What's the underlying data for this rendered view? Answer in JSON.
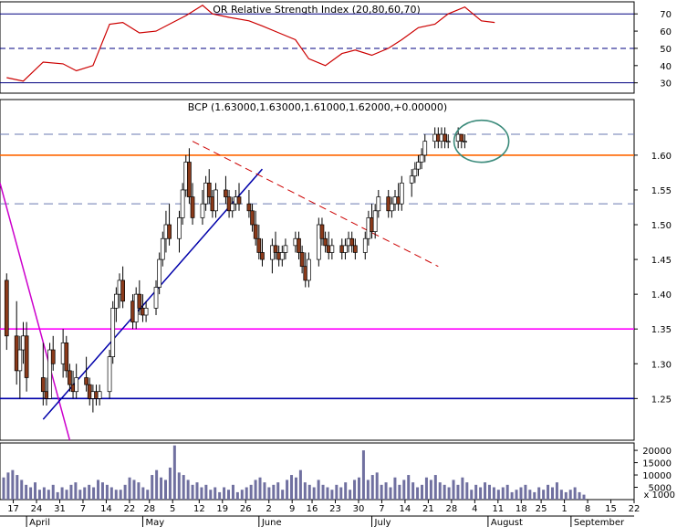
{
  "chart_data": [
    {
      "panel": "rsi",
      "type": "line",
      "title": "OR Relative Strength Index (20,80,60,70)",
      "y_ticks": [
        30,
        40,
        50,
        60,
        70
      ],
      "ylim": [
        24,
        77
      ],
      "reference_lines": [
        {
          "value": 70,
          "style": "solid",
          "color": "#000080"
        },
        {
          "value": 50,
          "style": "dashed",
          "color": "#000080"
        },
        {
          "value": 30,
          "style": "solid",
          "color": "#000080"
        }
      ],
      "series": [
        {
          "color": "#cc0000",
          "x": [
            "2011-04-15",
            "2011-04-20",
            "2011-04-26",
            "2011-05-02",
            "2011-05-06",
            "2011-05-11",
            "2011-05-16",
            "2011-05-20",
            "2011-05-25",
            "2011-05-30",
            "2011-06-03",
            "2011-06-08",
            "2011-06-13",
            "2011-06-16",
            "2011-06-21",
            "2011-06-27",
            "2011-07-01",
            "2011-07-06",
            "2011-07-11",
            "2011-07-15",
            "2011-07-20",
            "2011-07-25",
            "2011-07-29",
            "2011-08-03",
            "2011-08-08",
            "2011-08-12",
            "2011-08-17",
            "2011-08-22",
            "2011-08-26",
            "2011-08-31",
            "2011-09-05",
            "2011-09-09"
          ],
          "values": [
            33,
            31,
            42,
            41,
            37,
            40,
            64,
            65,
            59,
            60,
            64,
            69,
            75,
            70,
            68,
            66,
            63,
            59,
            55,
            44,
            40,
            47,
            49,
            46,
            50,
            55,
            62,
            64,
            70,
            74,
            66,
            65
          ]
        }
      ]
    },
    {
      "panel": "price",
      "type": "candlestick",
      "title": "BCP (1.63000,1.63000,1.61000,1.62000,+0.00000)",
      "y_ticks": [
        1.25,
        1.3,
        1.35,
        1.4,
        1.45,
        1.5,
        1.55,
        1.6
      ],
      "ylim": [
        1.19,
        1.68
      ],
      "colors": {
        "up": "#ffffff",
        "down": "#8b3a1a",
        "outline": "#000000"
      },
      "horizontal_lines": [
        {
          "value": 1.6,
          "color": "#ff6600",
          "style": "solid"
        },
        {
          "value": 1.35,
          "color": "#ff00ff",
          "style": "solid"
        },
        {
          "value": 1.25,
          "color": "#0000aa",
          "style": "solid"
        },
        {
          "value": 1.63,
          "color": "#6a7ab0",
          "style": "dashed"
        },
        {
          "value": 1.53,
          "color": "#6a7ab0",
          "style": "dashed"
        }
      ],
      "trendlines": [
        {
          "x1": "2011-04-13",
          "y1": 1.56,
          "x2": "2011-05-04",
          "y2": 1.19,
          "color": "#cc00cc"
        },
        {
          "x1": "2011-04-26",
          "y1": 1.22,
          "x2": "2011-07-01",
          "y2": 1.58,
          "color": "#0000aa"
        },
        {
          "x1": "2011-06-10",
          "y1": 1.62,
          "x2": "2011-08-23",
          "y2": 1.44,
          "color": "#cc0000",
          "style": "dashed"
        }
      ],
      "highlight": {
        "x": "2011-09-05",
        "y": 1.62,
        "color": "#3a8a7a"
      },
      "candles": [
        [
          "2011-04-15",
          1.42,
          1.43,
          1.32,
          1.34
        ],
        [
          "2011-04-18",
          1.34,
          1.39,
          1.27,
          1.29
        ],
        [
          "2011-04-19",
          1.29,
          1.34,
          1.25,
          1.32
        ],
        [
          "2011-04-20",
          1.32,
          1.36,
          1.3,
          1.34
        ],
        [
          "2011-04-21",
          1.34,
          1.36,
          1.26,
          1.28
        ],
        [
          "2011-04-26",
          1.28,
          1.33,
          1.24,
          1.26
        ],
        [
          "2011-04-27",
          1.26,
          1.28,
          1.24,
          1.25
        ],
        [
          "2011-04-28",
          1.25,
          1.33,
          1.25,
          1.32
        ],
        [
          "2011-04-29",
          1.32,
          1.34,
          1.29,
          1.3
        ],
        [
          "2011-05-02",
          1.3,
          1.35,
          1.28,
          1.33
        ],
        [
          "2011-05-03",
          1.33,
          1.34,
          1.28,
          1.29
        ],
        [
          "2011-05-04",
          1.29,
          1.3,
          1.26,
          1.27
        ],
        [
          "2011-05-05",
          1.27,
          1.29,
          1.25,
          1.26
        ],
        [
          "2011-05-06",
          1.26,
          1.3,
          1.25,
          1.28
        ],
        [
          "2011-05-09",
          1.28,
          1.31,
          1.26,
          1.27
        ],
        [
          "2011-05-10",
          1.27,
          1.28,
          1.24,
          1.25
        ],
        [
          "2011-05-11",
          1.25,
          1.27,
          1.23,
          1.26
        ],
        [
          "2011-05-12",
          1.26,
          1.27,
          1.24,
          1.25
        ],
        [
          "2011-05-13",
          1.25,
          1.27,
          1.24,
          1.26
        ],
        [
          "2011-05-16",
          1.26,
          1.32,
          1.25,
          1.31
        ],
        [
          "2011-05-17",
          1.31,
          1.39,
          1.3,
          1.38
        ],
        [
          "2011-05-18",
          1.38,
          1.41,
          1.36,
          1.4
        ],
        [
          "2011-05-19",
          1.4,
          1.43,
          1.38,
          1.42
        ],
        [
          "2011-05-20",
          1.42,
          1.44,
          1.38,
          1.39
        ],
        [
          "2011-05-23",
          1.39,
          1.4,
          1.35,
          1.36
        ],
        [
          "2011-05-24",
          1.36,
          1.41,
          1.35,
          1.4
        ],
        [
          "2011-05-25",
          1.4,
          1.42,
          1.37,
          1.38
        ],
        [
          "2011-05-26",
          1.38,
          1.4,
          1.36,
          1.37
        ],
        [
          "2011-05-27",
          1.37,
          1.39,
          1.36,
          1.38
        ],
        [
          "2011-05-30",
          1.38,
          1.42,
          1.37,
          1.41
        ],
        [
          "2011-05-31",
          1.41,
          1.46,
          1.4,
          1.45
        ],
        [
          "2011-06-01",
          1.45,
          1.49,
          1.44,
          1.48
        ],
        [
          "2011-06-02",
          1.48,
          1.52,
          1.46,
          1.5
        ],
        [
          "2011-06-03",
          1.5,
          1.53,
          1.47,
          1.48
        ],
        [
          "2011-06-06",
          1.48,
          1.52,
          1.46,
          1.51
        ],
        [
          "2011-06-07",
          1.51,
          1.56,
          1.5,
          1.55
        ],
        [
          "2011-06-08",
          1.55,
          1.6,
          1.54,
          1.59
        ],
        [
          "2011-06-09",
          1.59,
          1.61,
          1.53,
          1.54
        ],
        [
          "2011-06-10",
          1.54,
          1.56,
          1.5,
          1.51
        ],
        [
          "2011-06-13",
          1.51,
          1.55,
          1.5,
          1.53
        ],
        [
          "2011-06-14",
          1.53,
          1.57,
          1.52,
          1.56
        ],
        [
          "2011-06-15",
          1.56,
          1.58,
          1.53,
          1.54
        ],
        [
          "2011-06-16",
          1.54,
          1.55,
          1.51,
          1.52
        ],
        [
          "2011-06-17",
          1.52,
          1.56,
          1.51,
          1.55
        ],
        [
          "2011-06-20",
          1.55,
          1.57,
          1.53,
          1.54
        ],
        [
          "2011-06-21",
          1.54,
          1.55,
          1.51,
          1.52
        ],
        [
          "2011-06-22",
          1.52,
          1.54,
          1.51,
          1.53
        ],
        [
          "2011-06-23",
          1.53,
          1.55,
          1.52,
          1.54
        ],
        [
          "2011-06-24",
          1.54,
          1.56,
          1.52,
          1.53
        ],
        [
          "2011-06-27",
          1.53,
          1.55,
          1.51,
          1.52
        ],
        [
          "2011-06-28",
          1.52,
          1.53,
          1.49,
          1.5
        ],
        [
          "2011-06-29",
          1.5,
          1.52,
          1.47,
          1.48
        ],
        [
          "2011-06-30",
          1.48,
          1.5,
          1.45,
          1.46
        ],
        [
          "2011-07-01",
          1.46,
          1.48,
          1.44,
          1.45
        ],
        [
          "2011-07-04",
          1.45,
          1.48,
          1.43,
          1.47
        ],
        [
          "2011-07-05",
          1.47,
          1.49,
          1.45,
          1.46
        ],
        [
          "2011-07-06",
          1.46,
          1.47,
          1.44,
          1.45
        ],
        [
          "2011-07-07",
          1.45,
          1.47,
          1.44,
          1.46
        ],
        [
          "2011-07-08",
          1.46,
          1.48,
          1.45,
          1.47
        ],
        [
          "2011-07-11",
          1.47,
          1.49,
          1.46,
          1.48
        ],
        [
          "2011-07-12",
          1.48,
          1.49,
          1.45,
          1.46
        ],
        [
          "2011-07-13",
          1.46,
          1.47,
          1.43,
          1.44
        ],
        [
          "2011-07-14",
          1.44,
          1.46,
          1.41,
          1.42
        ],
        [
          "2011-07-15",
          1.42,
          1.46,
          1.41,
          1.45
        ],
        [
          "2011-07-18",
          1.45,
          1.51,
          1.44,
          1.5
        ],
        [
          "2011-07-19",
          1.5,
          1.51,
          1.47,
          1.48
        ],
        [
          "2011-07-20",
          1.48,
          1.49,
          1.46,
          1.47
        ],
        [
          "2011-07-21",
          1.47,
          1.49,
          1.45,
          1.46
        ],
        [
          "2011-07-22",
          1.46,
          1.48,
          1.45,
          1.47
        ],
        [
          "2011-07-25",
          1.47,
          1.48,
          1.45,
          1.46
        ],
        [
          "2011-07-26",
          1.46,
          1.48,
          1.45,
          1.47
        ],
        [
          "2011-07-27",
          1.47,
          1.49,
          1.46,
          1.48
        ],
        [
          "2011-07-28",
          1.48,
          1.49,
          1.46,
          1.47
        ],
        [
          "2011-07-29",
          1.47,
          1.48,
          1.45,
          1.46
        ],
        [
          "2011-08-01",
          1.46,
          1.49,
          1.45,
          1.48
        ],
        [
          "2011-08-02",
          1.48,
          1.52,
          1.47,
          1.51
        ],
        [
          "2011-08-03",
          1.51,
          1.53,
          1.48,
          1.49
        ],
        [
          "2011-08-04",
          1.49,
          1.53,
          1.48,
          1.52
        ],
        [
          "2011-08-05",
          1.52,
          1.55,
          1.51,
          1.54
        ],
        [
          "2011-08-08",
          1.54,
          1.55,
          1.51,
          1.52
        ],
        [
          "2011-08-09",
          1.52,
          1.54,
          1.51,
          1.53
        ],
        [
          "2011-08-10",
          1.53,
          1.55,
          1.52,
          1.54
        ],
        [
          "2011-08-11",
          1.54,
          1.56,
          1.52,
          1.53
        ],
        [
          "2011-08-12",
          1.53,
          1.57,
          1.52,
          1.56
        ],
        [
          "2011-08-15",
          1.56,
          1.58,
          1.54,
          1.57
        ],
        [
          "2011-08-16",
          1.57,
          1.59,
          1.56,
          1.58
        ],
        [
          "2011-08-17",
          1.58,
          1.6,
          1.57,
          1.59
        ],
        [
          "2011-08-18",
          1.59,
          1.61,
          1.58,
          1.6
        ],
        [
          "2011-08-19",
          1.6,
          1.63,
          1.59,
          1.62
        ],
        [
          "2011-08-22",
          1.62,
          1.64,
          1.61,
          1.63
        ],
        [
          "2011-08-23",
          1.63,
          1.64,
          1.61,
          1.62
        ],
        [
          "2011-08-24",
          1.62,
          1.64,
          1.61,
          1.63
        ],
        [
          "2011-08-25",
          1.63,
          1.64,
          1.61,
          1.62
        ],
        [
          "2011-08-26",
          1.62,
          1.63,
          1.61,
          1.62
        ],
        [
          "2011-08-29",
          1.62,
          1.64,
          1.61,
          1.63
        ],
        [
          "2011-08-30",
          1.63,
          1.63,
          1.61,
          1.62
        ],
        [
          "2011-08-31",
          1.62,
          1.63,
          1.61,
          1.62
        ]
      ]
    },
    {
      "panel": "volume",
      "type": "bar",
      "y_ticks": [
        5000,
        10000,
        15000,
        20000
      ],
      "y_tick_labels": [
        "5000",
        "10000",
        "15000",
        "20000"
      ],
      "ylim": [
        0,
        23000
      ],
      "extra_label": "x 1000",
      "color": "#7070a0",
      "values": [
        9000,
        11000,
        12000,
        10000,
        8000,
        6000,
        5000,
        7000,
        4000,
        5000,
        4000,
        6000,
        3000,
        5000,
        4000,
        6000,
        7000,
        4000,
        5000,
        6000,
        5000,
        8000,
        7000,
        6000,
        5000,
        4000,
        4000,
        6000,
        9000,
        8000,
        7000,
        5000,
        4000,
        10000,
        12000,
        9000,
        8000,
        13000,
        22000,
        11000,
        10000,
        8000,
        6000,
        7000,
        5000,
        6000,
        4000,
        5000,
        3000,
        5000,
        4000,
        6000,
        3000,
        4000,
        5000,
        6000,
        8000,
        9000,
        7000,
        5000,
        6000,
        7000,
        4000,
        8000,
        10000,
        9000,
        12000,
        7000,
        6000,
        5000,
        8000,
        6000,
        5000,
        4000,
        6000,
        5000,
        7000,
        4000,
        8000,
        9000,
        20000,
        8000,
        10000,
        11000,
        6000,
        7000,
        5000,
        9000,
        6000,
        8000,
        10000,
        7000,
        5000,
        6000,
        9000,
        8000,
        10000,
        7000,
        6000,
        5000,
        8000,
        6000,
        9000,
        7000,
        4000,
        6000,
        5000,
        7000,
        6000,
        5000,
        4000,
        5000,
        6000,
        3000,
        4000,
        5000,
        6000,
        4000,
        3000,
        5000,
        4000,
        6000,
        5000,
        7000,
        4000,
        3000,
        4000,
        5000,
        3000,
        2000
      ]
    }
  ],
  "x_axis": {
    "day_ticks": [
      {
        "date": "2011-04-17",
        "label": "17"
      },
      {
        "date": "2011-04-24",
        "label": "24"
      },
      {
        "date": "2011-05-01",
        "label": "31"
      },
      {
        "date": "2011-05-08",
        "label": "7"
      },
      {
        "date": "2011-05-15",
        "label": "14"
      },
      {
        "date": "2011-05-22",
        "label": "22"
      },
      {
        "date": "2011-05-28",
        "label": "28"
      },
      {
        "date": "2011-06-04",
        "label": "5"
      },
      {
        "date": "2011-06-12",
        "label": "12"
      },
      {
        "date": "2011-06-19",
        "label": "19"
      },
      {
        "date": "2011-06-26",
        "label": "26"
      },
      {
        "date": "2011-07-03",
        "label": "2"
      },
      {
        "date": "2011-07-10",
        "label": "9"
      },
      {
        "date": "2011-07-16",
        "label": "16"
      },
      {
        "date": "2011-07-23",
        "label": "23"
      },
      {
        "date": "2011-07-30",
        "label": "30"
      },
      {
        "date": "2011-08-06",
        "label": "7"
      },
      {
        "date": "2011-08-13",
        "label": "14"
      },
      {
        "date": "2011-08-20",
        "label": "21"
      },
      {
        "date": "2011-08-27",
        "label": "28"
      },
      {
        "date": "2011-09-03",
        "label": "4"
      },
      {
        "date": "2011-09-10",
        "label": "11"
      },
      {
        "date": "2011-09-17",
        "label": "18"
      },
      {
        "date": "2011-09-23",
        "label": "25"
      },
      {
        "date": "2011-09-30",
        "label": "1"
      },
      {
        "date": "2011-10-07",
        "label": "8"
      },
      {
        "date": "2011-10-14",
        "label": "15"
      },
      {
        "date": "2011-10-21",
        "label": "22"
      }
    ],
    "month_labels": [
      {
        "date": "2011-04-21",
        "label": "April"
      },
      {
        "date": "2011-05-26",
        "label": "May"
      },
      {
        "date": "2011-06-30",
        "label": "June"
      },
      {
        "date": "2011-08-03",
        "label": "July"
      },
      {
        "date": "2011-09-07",
        "label": "August"
      },
      {
        "date": "2011-10-02",
        "label": "September"
      }
    ]
  }
}
